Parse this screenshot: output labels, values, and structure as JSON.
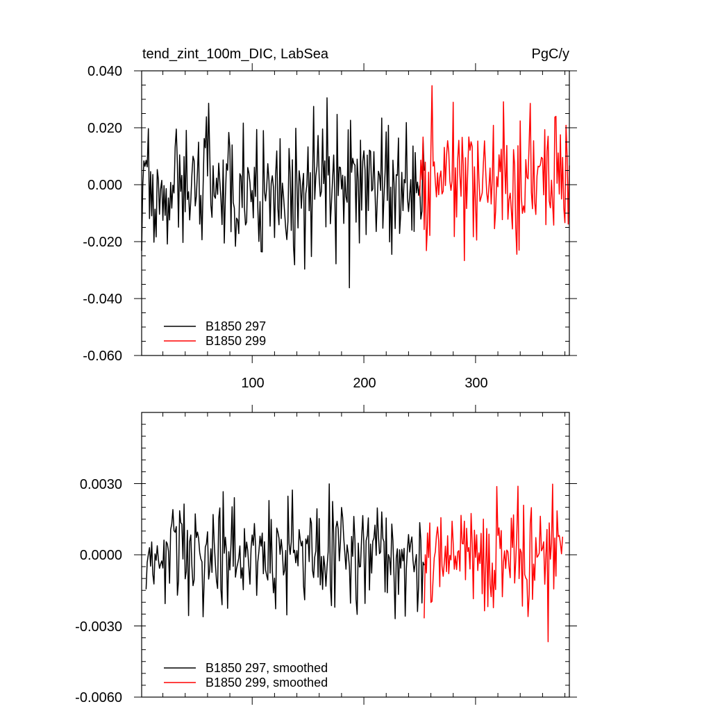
{
  "colors": {
    "run_297": "#000000",
    "run_299": "#ff0000",
    "background": "#ffffff"
  },
  "chart_data": [
    {
      "type": "line",
      "title": "tend_zint_100m_DIC, LabSea",
      "units": "PgC/y",
      "x_min": 1,
      "x_max": 384,
      "xlim": [
        1,
        384
      ],
      "ylim": [
        -0.06,
        0.04
      ],
      "y_ticks": [
        0.04,
        0.02,
        0.0,
        -0.02,
        -0.04,
        -0.06
      ],
      "y_tick_labels": [
        "0.040",
        "0.020",
        "0.000",
        "-0.020",
        "-0.040",
        "-0.060"
      ],
      "x_ticks": [
        100,
        200,
        300
      ],
      "x_tick_labels": [
        "100",
        "200",
        "300"
      ],
      "grid": false,
      "legend_position": "bottom-left",
      "series": [
        {
          "name": "B1850 297",
          "color": "#000000",
          "x_start": 1,
          "x_end": 254
        },
        {
          "name": "B1850 299",
          "color": "#ff0000",
          "x_start": 250,
          "x_end": 384
        }
      ],
      "seed": 297
    },
    {
      "type": "line",
      "title": "",
      "x_min": 1,
      "x_max": 384,
      "xlim": [
        1,
        384
      ],
      "ylim": [
        -0.006,
        0.006
      ],
      "y_ticks": [
        0.003,
        0.0,
        -0.003,
        -0.006
      ],
      "y_tick_labels": [
        "0.0030",
        "0.0000",
        "-0.0030",
        "-0.0060"
      ],
      "x_ticks": [
        100,
        200,
        300
      ],
      "x_tick_labels": [
        "",
        "",
        ""
      ],
      "grid": false,
      "legend_position": "bottom-left",
      "series": [
        {
          "name": "B1850 297, smoothed",
          "color": "#000000",
          "x_start": 5,
          "x_end": 254
        },
        {
          "name": "B1850 299, smoothed",
          "color": "#ff0000",
          "x_start": 254,
          "x_end": 378
        }
      ],
      "seed": 299
    }
  ]
}
